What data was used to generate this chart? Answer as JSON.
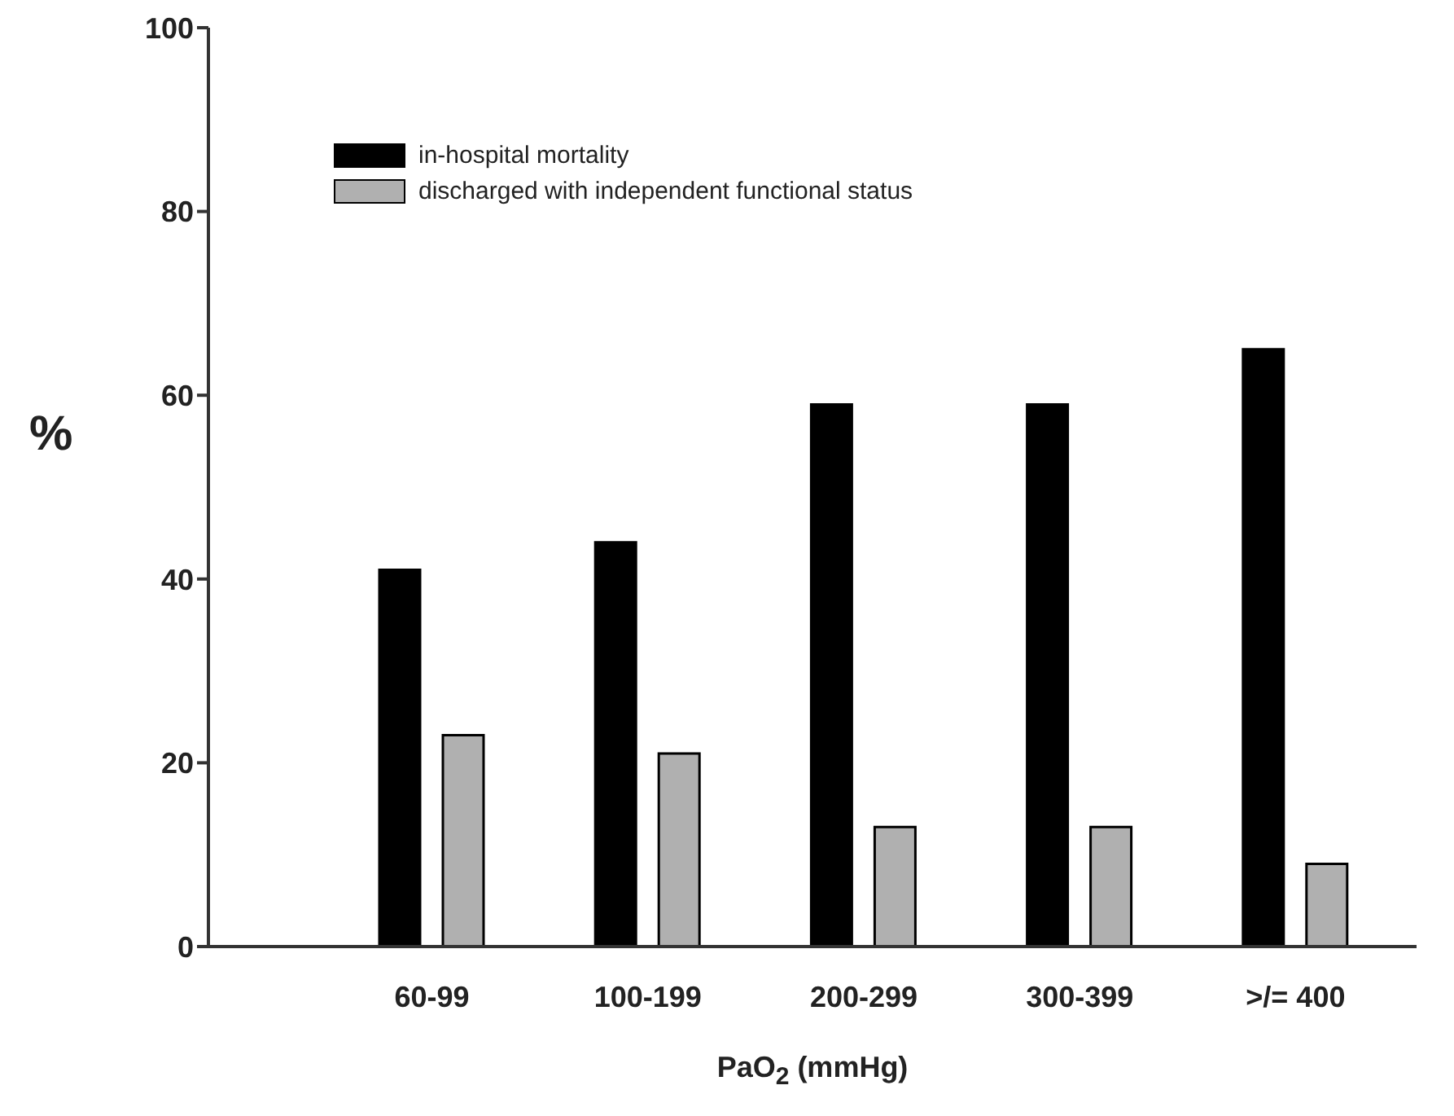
{
  "chart_data": {
    "type": "bar",
    "xlabel": "PaO$_{2}$ (mmHg)",
    "ylabel": "%",
    "categories": [
      "60-99",
      "100-199",
      "200-299",
      "300-399",
      ">/= 400"
    ],
    "series": [
      {
        "name": "in-hospital mortality",
        "color": "#000000",
        "values": [
          41,
          44,
          59,
          59,
          65
        ]
      },
      {
        "name": "discharged with independent functional status",
        "color": "#b0b0b0",
        "values": [
          23,
          21,
          13,
          13,
          9
        ]
      }
    ],
    "ylim": [
      0,
      100
    ],
    "yticks": [
      0,
      20,
      40,
      60,
      80,
      100
    ],
    "grid": false,
    "legend": "top left"
  }
}
